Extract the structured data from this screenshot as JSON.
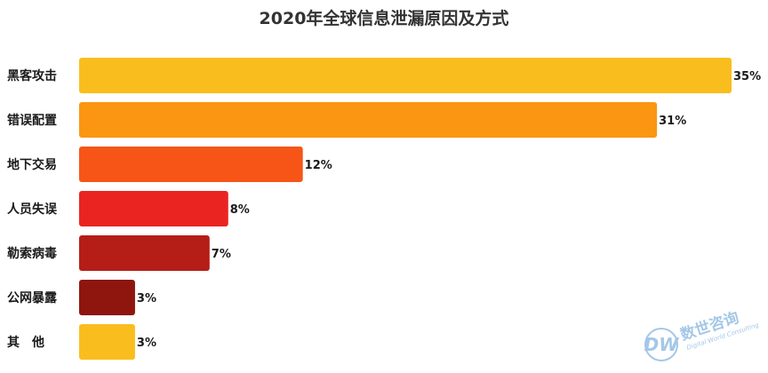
{
  "chart_data": {
    "type": "bar",
    "orientation": "horizontal",
    "title": "2020年全球信息泄漏原因及方式",
    "categories": [
      "黑客攻击",
      "错误配置",
      "地下交易",
      "人员失误",
      "勒索病毒",
      "公网暴露",
      "其　他"
    ],
    "values": [
      35,
      31,
      12,
      8,
      7,
      3,
      3
    ],
    "value_labels": [
      "35%",
      "31%",
      "12%",
      "8%",
      "7%",
      "3%",
      "3%"
    ],
    "unit": "%",
    "xlim": [
      0,
      35
    ],
    "grid": false,
    "legend": "none",
    "colors": [
      "#F9BE1E",
      "#FB9612",
      "#F75517",
      "#EA2421",
      "#B51E17",
      "#8E160E",
      "#F9BE1E"
    ]
  },
  "watermark": {
    "text": "数世咨询",
    "subtext": "Digital World Consulting",
    "logo_letters": "DW",
    "color": "#5B9BD5"
  }
}
